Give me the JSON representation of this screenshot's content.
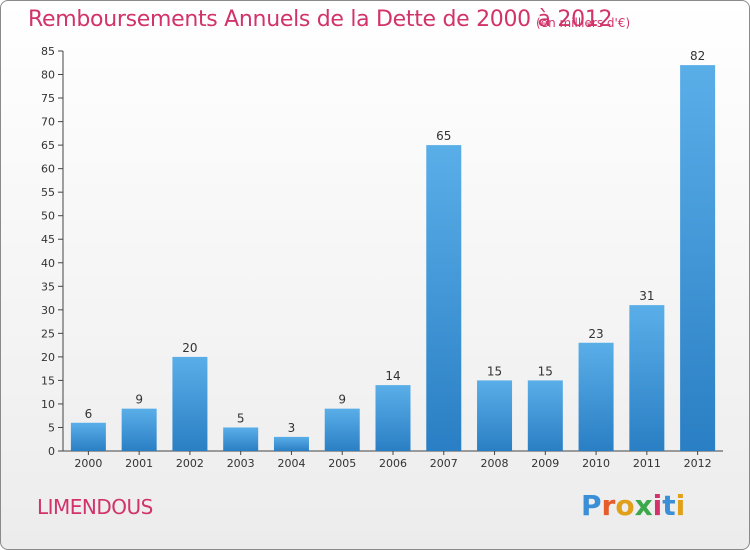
{
  "header": {
    "title": "Remboursements Annuels de la Dette de 2000 à 2012",
    "unit_note": "(en milliers d'€)"
  },
  "footer": {
    "commune": "LIMENDOUS",
    "logo_text": "Proxiti"
  },
  "colors": {
    "title": "#d1336a",
    "bar_top": "#5aaee8",
    "bar_bottom": "#2a7fc4"
  },
  "chart_data": {
    "type": "bar",
    "categories": [
      "2000",
      "2001",
      "2002",
      "2003",
      "2004",
      "2005",
      "2006",
      "2007",
      "2008",
      "2009",
      "2010",
      "2011",
      "2012"
    ],
    "values": [
      6,
      9,
      20,
      5,
      3,
      9,
      14,
      65,
      15,
      15,
      23,
      31,
      82
    ],
    "ylim": [
      0,
      85
    ],
    "yticks": [
      0,
      5,
      10,
      15,
      20,
      25,
      30,
      35,
      40,
      45,
      50,
      55,
      60,
      65,
      70,
      75,
      80,
      85
    ],
    "grid": false,
    "data_labels": true
  }
}
